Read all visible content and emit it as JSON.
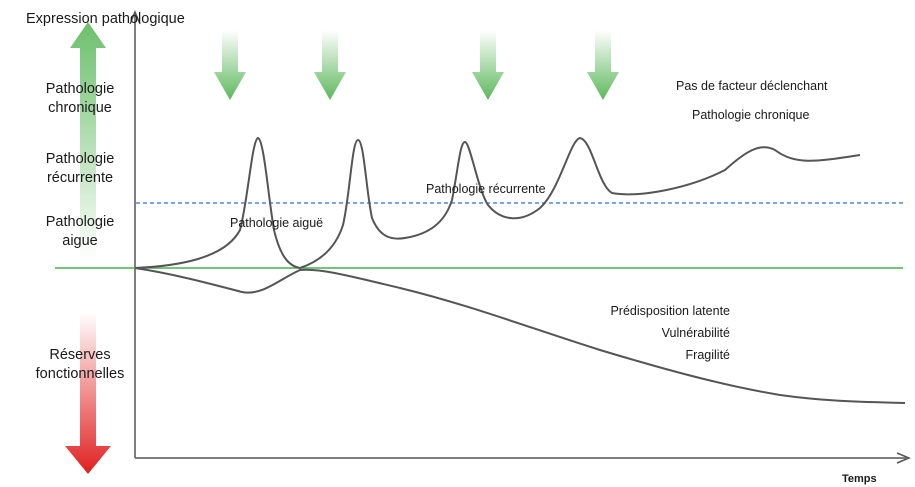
{
  "axis": {
    "y_label_top": "Expression pathologique",
    "y_label_bottom": "Réserves fonctionnelles",
    "x_label": "Temps"
  },
  "levels": {
    "chronique": "Pathologie chronique",
    "recurrente": "Pathologie récurrente",
    "aigue": "Pathologie aigue"
  },
  "annotations": {
    "acute": "Pathologie aiguë",
    "recurrent": "Pathologie récurrente",
    "no_trigger": "Pas de facteur déclenchant",
    "chronic": "Pathologie chronique",
    "predisposition": "Prédisposition latente",
    "vulnerability": "Vulnérabilité",
    "fragility": "Fragilité"
  },
  "colors": {
    "trigger_arrow": "#5cb85c",
    "baseline": "#4caf50",
    "threshold": "#2f6fd6",
    "up_arrow": "#7cc67c",
    "down_arrow": "#e02020",
    "curve": "#555555"
  }
}
